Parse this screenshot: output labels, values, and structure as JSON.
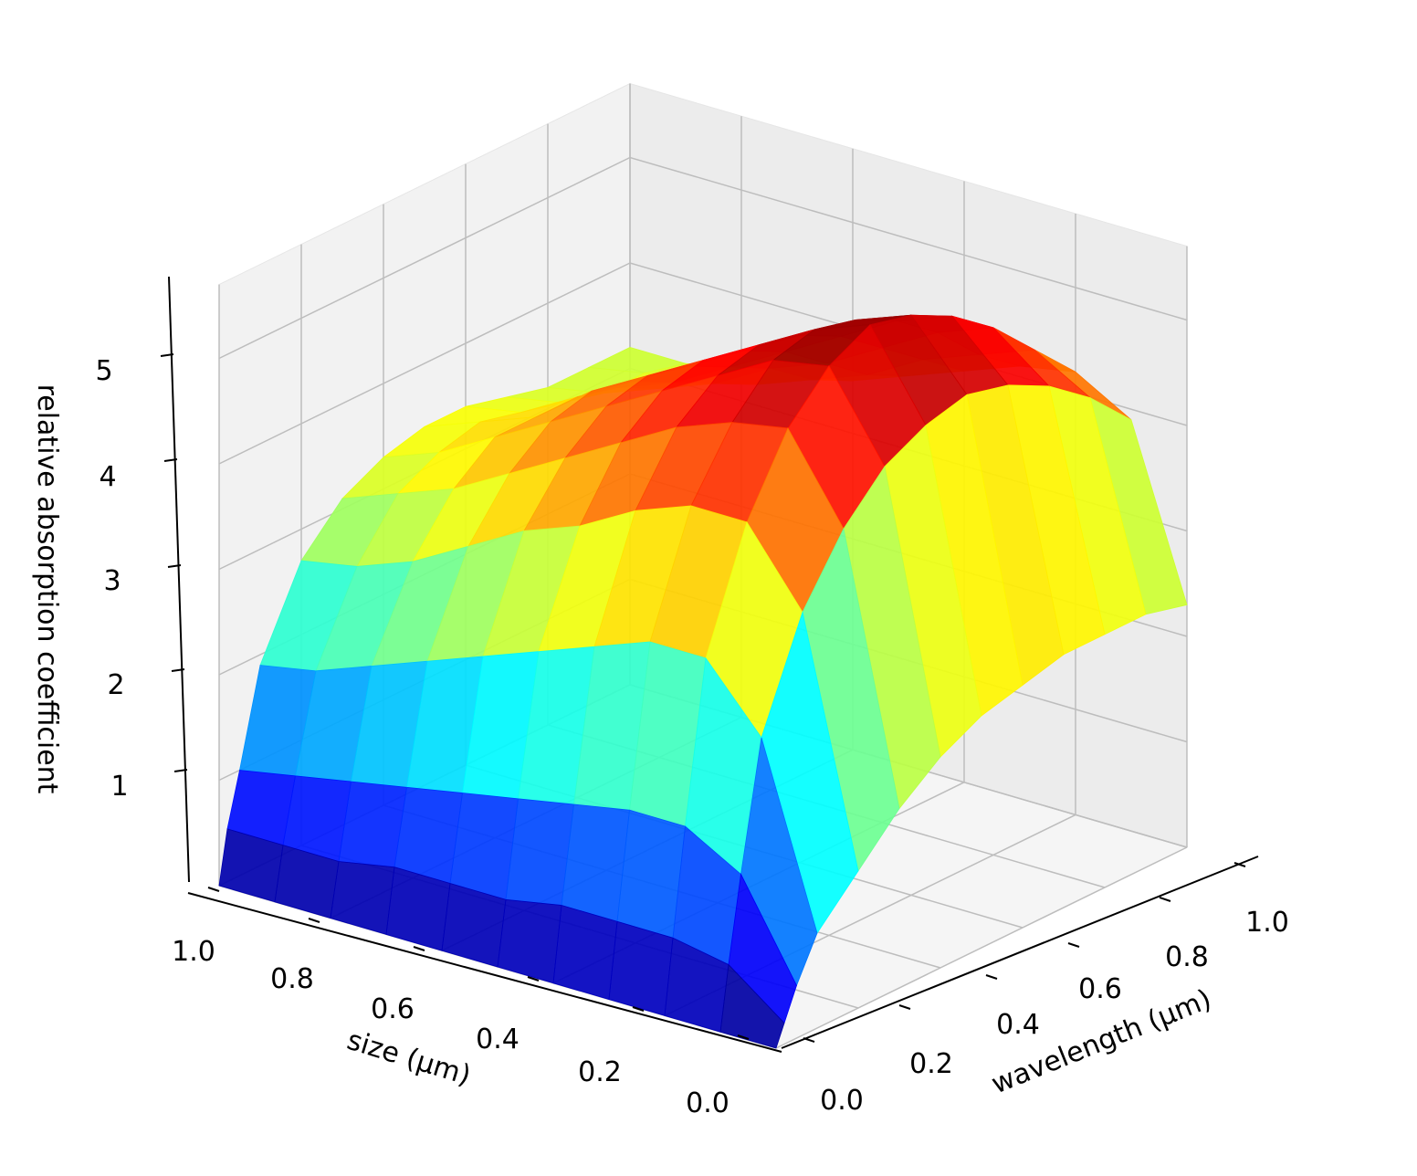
{
  "chart_data": {
    "type": "surface",
    "title": "",
    "xlabel": "size (µm)",
    "ylabel": "wavelength (µm)",
    "zlabel": "relative absorption coefficient",
    "xlim": [
      0.0,
      1.0
    ],
    "ylim": [
      0.0,
      1.0
    ],
    "zlim": [
      0.0,
      5.7
    ],
    "x_ticks": [
      "0.0",
      "0.2",
      "0.4",
      "0.6",
      "0.8",
      "1.0"
    ],
    "y_ticks": [
      "0.0",
      "0.2",
      "0.4",
      "0.6",
      "0.8",
      "1.0"
    ],
    "z_ticks": [
      "1",
      "2",
      "3",
      "4",
      "5"
    ],
    "colormap": "jet",
    "grid": true,
    "surface": {
      "size": [
        0.0,
        0.1,
        0.2,
        0.3,
        0.4,
        0.5,
        0.6,
        0.7,
        0.8,
        0.9,
        1.0
      ],
      "wavelength": [
        0.0,
        0.02,
        0.05,
        0.1,
        0.2,
        0.3,
        0.4,
        0.5,
        0.6,
        0.7,
        0.8,
        0.9,
        1.0
      ],
      "values": [
        [
          0.0,
          0.2,
          0.5,
          0.9,
          1.3,
          1.7,
          2.0,
          2.2,
          2.3,
          2.4,
          2.4,
          2.4,
          2.3
        ],
        [
          0.0,
          0.6,
          1.4,
          2.6,
          3.6,
          4.2,
          4.6,
          4.8,
          4.9,
          4.8,
          4.6,
          4.3,
          3.9
        ],
        [
          0.0,
          0.7,
          1.7,
          3.2,
          4.3,
          5.0,
          5.4,
          5.6,
          5.5,
          5.3,
          5.0,
          4.6,
          4.2
        ],
        [
          0.0,
          0.7,
          1.7,
          3.2,
          4.3,
          4.9,
          5.3,
          5.4,
          5.3,
          5.1,
          4.8,
          4.4,
          4.1
        ],
        [
          0.0,
          0.7,
          1.6,
          3.0,
          4.1,
          4.7,
          5.0,
          5.1,
          5.0,
          4.8,
          4.5,
          4.2,
          3.9
        ],
        [
          0.0,
          0.6,
          1.5,
          2.8,
          3.8,
          4.4,
          4.7,
          4.8,
          4.7,
          4.5,
          4.2,
          3.9,
          3.7
        ],
        [
          0.0,
          0.6,
          1.4,
          2.6,
          3.6,
          4.1,
          4.4,
          4.5,
          4.4,
          4.2,
          4.0,
          3.7,
          3.5
        ],
        [
          0.0,
          0.6,
          1.3,
          2.4,
          3.3,
          3.8,
          4.1,
          4.2,
          4.1,
          3.9,
          3.7,
          3.5,
          3.4
        ],
        [
          0.0,
          0.5,
          1.2,
          2.2,
          3.0,
          3.5,
          3.8,
          3.8,
          3.8,
          3.7,
          3.5,
          3.4,
          3.3
        ],
        [
          0.0,
          0.5,
          1.1,
          2.0,
          2.8,
          3.3,
          3.5,
          3.6,
          3.5,
          3.4,
          3.3,
          3.3,
          3.2
        ],
        [
          0.0,
          0.5,
          1.0,
          1.9,
          2.7,
          3.1,
          3.3,
          3.4,
          3.4,
          3.3,
          3.2,
          3.2,
          3.2
        ]
      ]
    }
  }
}
